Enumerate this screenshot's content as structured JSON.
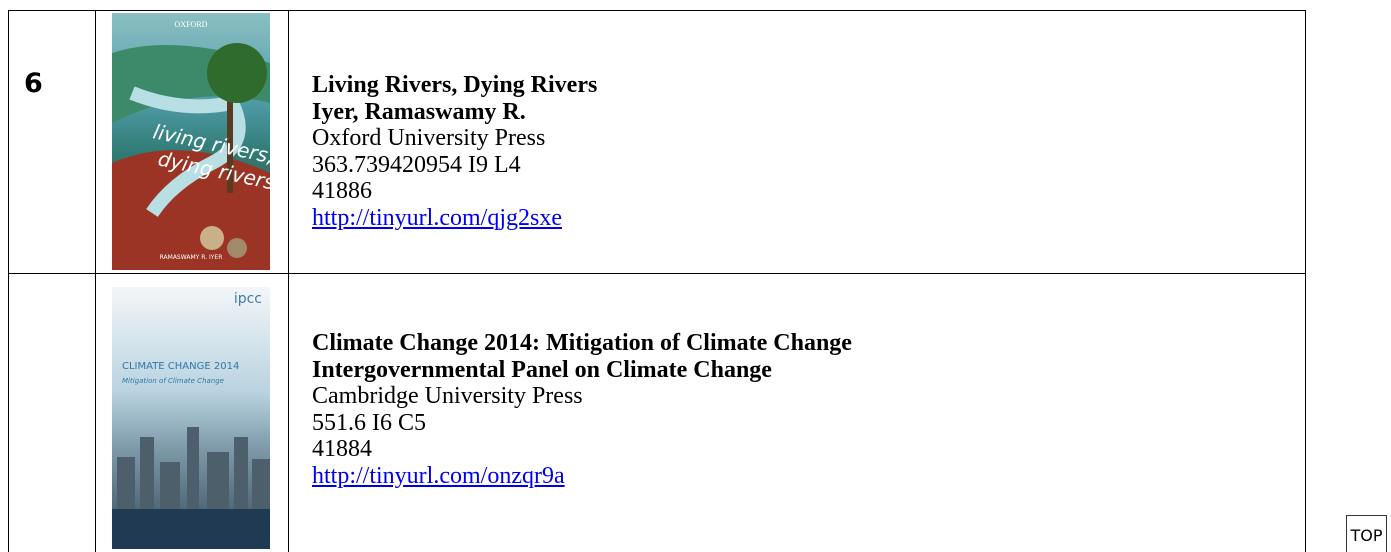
{
  "table": {
    "rows": [
      {
        "number": "6",
        "cover": {
          "publisher": "OXFORD",
          "title_line1": "living rivers,",
          "title_line2": "dying rivers",
          "editor": "RAMASWAMY R. IYER"
        },
        "title": "Living Rivers, Dying Rivers",
        "author": "Iyer, Ramaswamy R.",
        "publisher": "Oxford University Press",
        "call_number": "363.739420954 I9 L4",
        "accession": "41886",
        "link": "http://tinyurl.com/qjg2sxe"
      },
      {
        "cover": {
          "publisher": "ipcc",
          "title_line1": "CLIMATE CHANGE 2014",
          "title_line2": "Mitigation of Climate Change"
        },
        "title": "Climate Change 2014: Mitigation of Climate Change",
        "author": "Intergovernmental Panel on Climate Change",
        "publisher": "Cambridge University Press",
        "call_number": "551.6 I6 C5",
        "accession": "41884",
        "link": "http://tinyurl.com/onzqr9a"
      }
    ]
  },
  "top_button": "TOP"
}
